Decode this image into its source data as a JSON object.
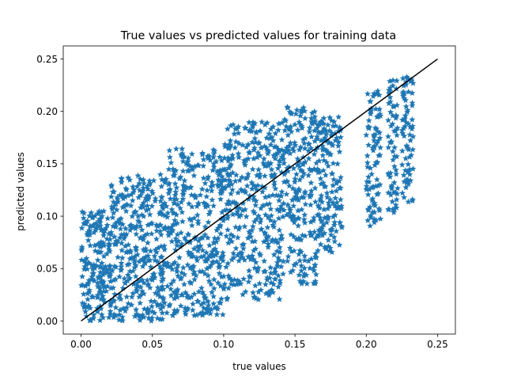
{
  "chart_data": {
    "type": "scatter",
    "title": "True values vs predicted values for training data",
    "xlabel": "true values",
    "ylabel": "predicted values",
    "xlim": [
      -0.0125,
      0.2625
    ],
    "ylim": [
      -0.0125,
      0.2625
    ],
    "xticks": [
      "0.00",
      "0.05",
      "0.10",
      "0.15",
      "0.20",
      "0.25"
    ],
    "yticks": [
      "0.00",
      "0.05",
      "0.10",
      "0.15",
      "0.20",
      "0.25"
    ],
    "grid": false,
    "marker": "star",
    "series": [
      {
        "color": "#1f77b4",
        "regions": [
          {
            "x": [
              0.0,
              0.02
            ],
            "y": [
              0.0,
              0.105
            ]
          },
          {
            "x": [
              0.02,
              0.06
            ],
            "y": [
              0.0,
              0.14
            ]
          },
          {
            "x": [
              0.06,
              0.1
            ],
            "y": [
              0.005,
              0.165
            ]
          },
          {
            "x": [
              0.1,
              0.14
            ],
            "y": [
              0.02,
              0.19
            ]
          },
          {
            "x": [
              0.14,
              0.165
            ],
            "y": [
              0.035,
              0.205
            ]
          },
          {
            "x": [
              0.165,
              0.183
            ],
            "y": [
              0.065,
              0.195
            ]
          },
          {
            "x": [
              0.2,
              0.21
            ],
            "y": [
              0.09,
              0.22
            ]
          },
          {
            "x": [
              0.215,
              0.222
            ],
            "y": [
              0.1,
              0.23
            ]
          },
          {
            "x": [
              0.225,
              0.233
            ],
            "y": [
              0.11,
              0.235
            ]
          }
        ]
      }
    ],
    "reference_line": {
      "x": [
        0.0,
        0.25
      ],
      "y": [
        0.0,
        0.25
      ],
      "color": "#000000"
    }
  }
}
